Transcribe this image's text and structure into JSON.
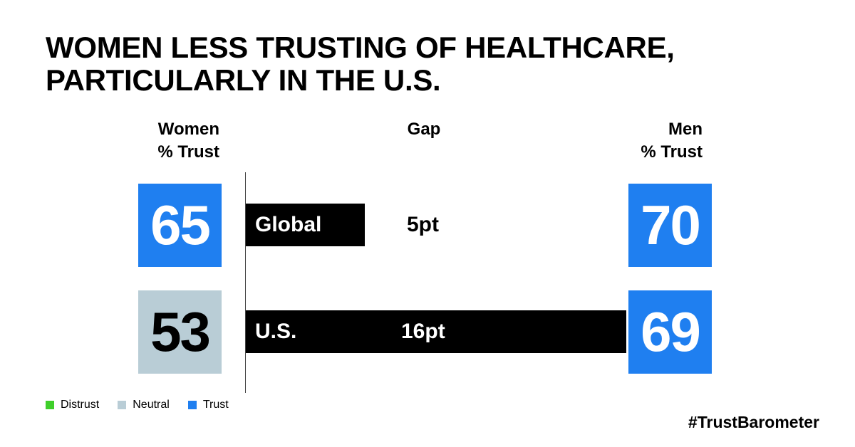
{
  "title_lines": [
    "WOMEN LESS TRUSTING OF HEALTHCARE,",
    "PARTICULARLY IN THE U.S."
  ],
  "columns": {
    "women": [
      "Women",
      "% Trust"
    ],
    "gap": "Gap",
    "men": [
      "Men",
      "% Trust"
    ]
  },
  "colors": {
    "distrust": "#3fcf2a",
    "neutral": "#b9cdd6",
    "trust": "#1f7ff0"
  },
  "chart_data": {
    "type": "bar",
    "categories": [
      "Global",
      "U.S."
    ],
    "series": [
      {
        "name": "Women",
        "values": [
          65,
          53
        ],
        "categories_color": [
          "trust",
          "neutral"
        ]
      },
      {
        "name": "Men",
        "values": [
          70,
          69
        ],
        "categories_color": [
          "trust",
          "trust"
        ]
      },
      {
        "name": "Gap",
        "values": [
          5,
          16
        ]
      }
    ],
    "gap_labels": [
      "5pt",
      "16pt"
    ],
    "title": "WOMEN LESS TRUSTING OF HEALTHCARE, PARTICULARLY IN THE U.S."
  },
  "legend": [
    "Distrust",
    "Neutral",
    "Trust"
  ],
  "hashtag": "#TrustBarometer"
}
